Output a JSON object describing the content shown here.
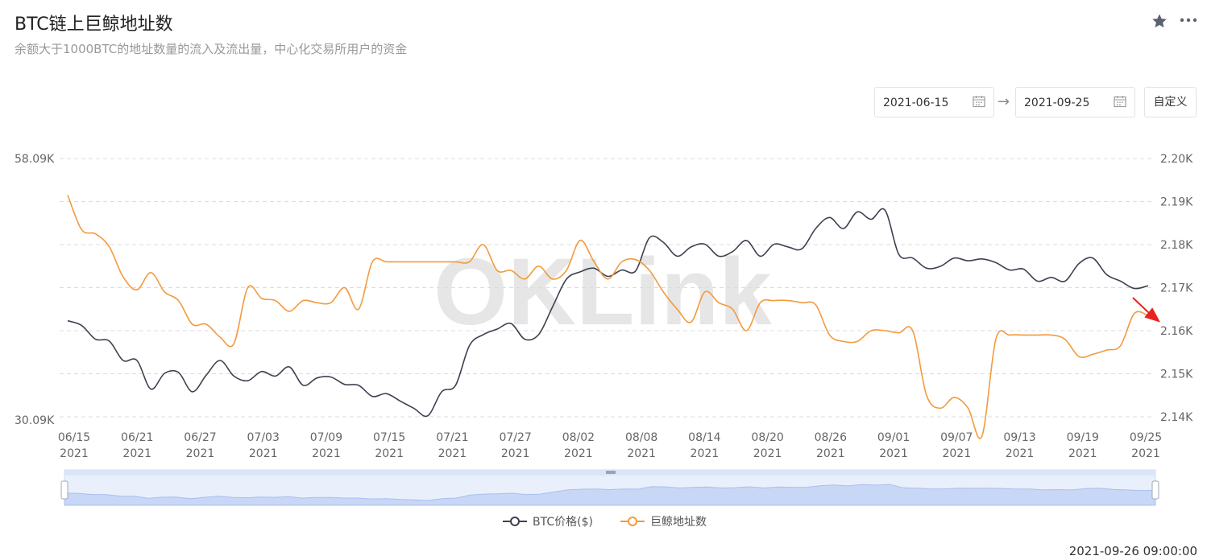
{
  "header": {
    "title": "BTC链上巨鲸地址数",
    "subtitle": "余额大于1000BTC的地址数量的流入及流出量，中心化交易所用户的资金",
    "star_icon": "star-icon",
    "more_icon": "more-icon"
  },
  "date_range": {
    "start": "2021-06-15",
    "end": "2021-09-25",
    "custom_label": "自定义"
  },
  "watermark": "OKLink",
  "updated_at": "2021-09-26 09:00:00",
  "colors": {
    "btc": "#3d4150",
    "whale": "#f39a3d",
    "accent_arrow": "#e8231f"
  },
  "chart_data": {
    "type": "line",
    "title": "",
    "left_axis": {
      "min_label": "30.09K",
      "max_label": "58.09K"
    },
    "right_axis": {
      "ticks": [
        "2.14K",
        "2.15K",
        "2.16K",
        "2.17K",
        "2.18K",
        "2.19K",
        "2.20K"
      ]
    },
    "x_ticks": [
      {
        "d": "06/15",
        "y": "2021"
      },
      {
        "d": "06/21",
        "y": "2021"
      },
      {
        "d": "06/27",
        "y": "2021"
      },
      {
        "d": "07/03",
        "y": "2021"
      },
      {
        "d": "07/09",
        "y": "2021"
      },
      {
        "d": "07/15",
        "y": "2021"
      },
      {
        "d": "07/21",
        "y": "2021"
      },
      {
        "d": "07/27",
        "y": "2021"
      },
      {
        "d": "08/02",
        "y": "2021"
      },
      {
        "d": "08/08",
        "y": "2021"
      },
      {
        "d": "08/14",
        "y": "2021"
      },
      {
        "d": "08/20",
        "y": "2021"
      },
      {
        "d": "08/26",
        "y": "2021"
      },
      {
        "d": "09/01",
        "y": "2021"
      },
      {
        "d": "09/07",
        "y": "2021"
      },
      {
        "d": "09/13",
        "y": "2021"
      },
      {
        "d": "09/19",
        "y": "2021"
      },
      {
        "d": "09/25",
        "y": "2021"
      }
    ],
    "legend": [
      {
        "name": "BTC价格($)",
        "color": "#3d4150"
      },
      {
        "name": "巨鲸地址数",
        "color": "#f39a3d"
      }
    ],
    "series": [
      {
        "name": "BTC价格($)",
        "axis": "left",
        "values": [
          40.5,
          40.0,
          38.5,
          38.3,
          36.2,
          36.2,
          33.1,
          34.8,
          34.9,
          32.8,
          34.6,
          36.2,
          34.5,
          34.0,
          35.0,
          34.5,
          35.5,
          33.5,
          34.3,
          34.4,
          33.6,
          33.5,
          32.3,
          32.6,
          31.8,
          31.0,
          30.2,
          32.8,
          33.5,
          37.8,
          39.0,
          39.6,
          40.2,
          38.5,
          39.0,
          42.0,
          45.0,
          45.8,
          46.2,
          45.3,
          46.0,
          45.9,
          49.5,
          49.0,
          47.5,
          48.5,
          48.8,
          47.5,
          48.0,
          49.2,
          47.5,
          48.8,
          48.5,
          48.3,
          50.5,
          51.7,
          50.5,
          52.3,
          51.5,
          52.5,
          47.7,
          47.3,
          46.2,
          46.4,
          47.3,
          47.0,
          47.2,
          46.8,
          46.0,
          46.1,
          44.8,
          45.2,
          44.8,
          46.7,
          47.3,
          45.5,
          44.8,
          44.0,
          44.3
        ]
      },
      {
        "name": "巨鲸地址数",
        "axis": "right",
        "values": [
          2.1915,
          2.1835,
          2.1825,
          2.1795,
          2.1725,
          2.1695,
          2.1735,
          2.169,
          2.167,
          2.1615,
          2.1615,
          2.1585,
          2.157,
          2.17,
          2.1675,
          2.167,
          2.1645,
          2.167,
          2.1665,
          2.1665,
          2.17,
          2.165,
          2.176,
          2.176,
          2.176,
          2.176,
          2.176,
          2.176,
          2.176,
          2.176,
          2.18,
          2.174,
          2.174,
          2.172,
          2.175,
          2.172,
          2.174,
          2.181,
          2.176,
          2.172,
          2.176,
          2.1765,
          2.174,
          2.169,
          2.165,
          2.162,
          2.169,
          2.1665,
          2.165,
          2.16,
          2.1665,
          2.167,
          2.167,
          2.1665,
          2.166,
          2.159,
          2.1575,
          2.1575,
          2.16,
          2.16,
          2.1595,
          2.16,
          2.145,
          2.142,
          2.1445,
          2.142,
          2.1355,
          2.158,
          2.159,
          2.159,
          2.159,
          2.159,
          2.158,
          2.154,
          2.1545,
          2.1555,
          2.1565,
          2.164,
          2.1635
        ]
      }
    ]
  }
}
